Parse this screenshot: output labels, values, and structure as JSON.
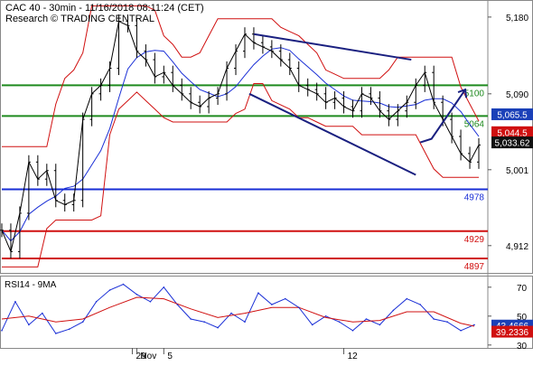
{
  "header": {
    "line1": "CAC 40 - 30min - 11/16/2018 08:11:24 (CET)",
    "line2": "Research © TRADING CENTRAL"
  },
  "price_axis": {
    "ticks": [
      {
        "value": 5180,
        "label": "5,180"
      },
      {
        "value": 5090,
        "label": "5,090"
      },
      {
        "value": 5001,
        "label": "5,001"
      },
      {
        "value": 4912,
        "label": "4,912"
      }
    ]
  },
  "rsi_axis": {
    "ticks": [
      {
        "value": 70,
        "label": "70"
      },
      {
        "value": 50,
        "label": "50"
      },
      {
        "value": 30,
        "label": "30"
      }
    ]
  },
  "date_axis": [
    {
      "x": 29,
      "label": "29"
    },
    {
      "x": 30,
      "label": "Nov"
    },
    {
      "x": 36,
      "label": "5"
    },
    {
      "x": 76,
      "label": "12"
    }
  ],
  "levels": [
    {
      "value": 5100,
      "label": "5100",
      "color": "#1f8a1f"
    },
    {
      "value": 5064,
      "label": "5064",
      "color": "#1f8a1f"
    },
    {
      "value": 4978,
      "label": "4978",
      "color": "#1a2fd6"
    },
    {
      "value": 4929,
      "label": "4929",
      "color": "#d01010"
    },
    {
      "value": 4897,
      "label": "4897",
      "color": "#d01010"
    }
  ],
  "price_tags": [
    {
      "value": 5066,
      "label": "5,065.5",
      "bg": "#1a40b8",
      "fg": "#ffffff"
    },
    {
      "value": 5045,
      "label": "5,044.5",
      "bg": "#d01010",
      "fg": "#ffffff"
    },
    {
      "value": 5033,
      "label": "5,033.62",
      "bg": "#111111",
      "fg": "#ffffff"
    }
  ],
  "rsi": {
    "label": "RSI14 - 9MA",
    "tags": [
      {
        "value": 43.47,
        "label": "43.4666",
        "bg": "#1a40b8",
        "fg": "#ffffff"
      },
      {
        "value": 39.23,
        "label": "39.2336",
        "bg": "#d01010",
        "fg": "#ffffff"
      }
    ]
  },
  "chart_data": {
    "type": "line",
    "title": "CAC 40 - 30min",
    "price_range": [
      4880,
      5200
    ],
    "rsi_range": [
      28,
      78
    ],
    "price_series": {
      "x": [
        0,
        2,
        4,
        6,
        8,
        10,
        12,
        14,
        16,
        18,
        20,
        22,
        24,
        26,
        28,
        30,
        32,
        34,
        36,
        38,
        40,
        42,
        44,
        46,
        48,
        50,
        52,
        54,
        56,
        58,
        60,
        62,
        64,
        66,
        68,
        70,
        72,
        74,
        76,
        78,
        80,
        82,
        84,
        86,
        88,
        90,
        92,
        94,
        96,
        98,
        100,
        102,
        104,
        106
      ],
      "values": [
        4930,
        4905,
        4950,
        5010,
        4990,
        5000,
        4965,
        4960,
        4965,
        5060,
        5090,
        5100,
        5120,
        5175,
        5170,
        5140,
        5130,
        5110,
        5115,
        5100,
        5090,
        5080,
        5075,
        5085,
        5090,
        5120,
        5140,
        5160,
        5150,
        5145,
        5140,
        5130,
        5120,
        5100,
        5095,
        5090,
        5080,
        5085,
        5075,
        5070,
        5090,
        5085,
        5070,
        5060,
        5070,
        5080,
        5100,
        5115,
        5080,
        5060,
        5040,
        5020,
        5010,
        5030
      ]
    },
    "trend_lines": [
      {
        "x": [
          56,
          91
        ],
        "values": [
          5160,
          5130
        ]
      },
      {
        "x": [
          55,
          92
        ],
        "values": [
          5090,
          4995
        ]
      }
    ],
    "projection_arrow": {
      "x": [
        93,
        103
      ],
      "values": [
        5033,
        5095
      ]
    },
    "rsi_series": {
      "x": [
        0,
        3,
        6,
        9,
        12,
        15,
        18,
        21,
        24,
        27,
        30,
        33,
        36,
        39,
        42,
        45,
        48,
        51,
        54,
        57,
        60,
        63,
        66,
        69,
        72,
        75,
        78,
        81,
        84,
        87,
        90,
        93,
        96,
        99,
        102,
        105
      ],
      "values": [
        40,
        60,
        44,
        52,
        38,
        41,
        46,
        60,
        68,
        72,
        65,
        60,
        70,
        58,
        48,
        46,
        42,
        52,
        46,
        66,
        58,
        62,
        56,
        44,
        50,
        46,
        40,
        48,
        44,
        54,
        62,
        58,
        48,
        46,
        40,
        44
      ]
    },
    "rsi_ma": {
      "x": [
        0,
        6,
        12,
        18,
        24,
        30,
        36,
        42,
        48,
        54,
        60,
        66,
        72,
        78,
        84,
        90,
        96,
        102,
        105
      ],
      "values": [
        48,
        50,
        46,
        48,
        56,
        63,
        62,
        55,
        49,
        52,
        56,
        56,
        49,
        46,
        47,
        53,
        53,
        45,
        43
      ]
    }
  }
}
